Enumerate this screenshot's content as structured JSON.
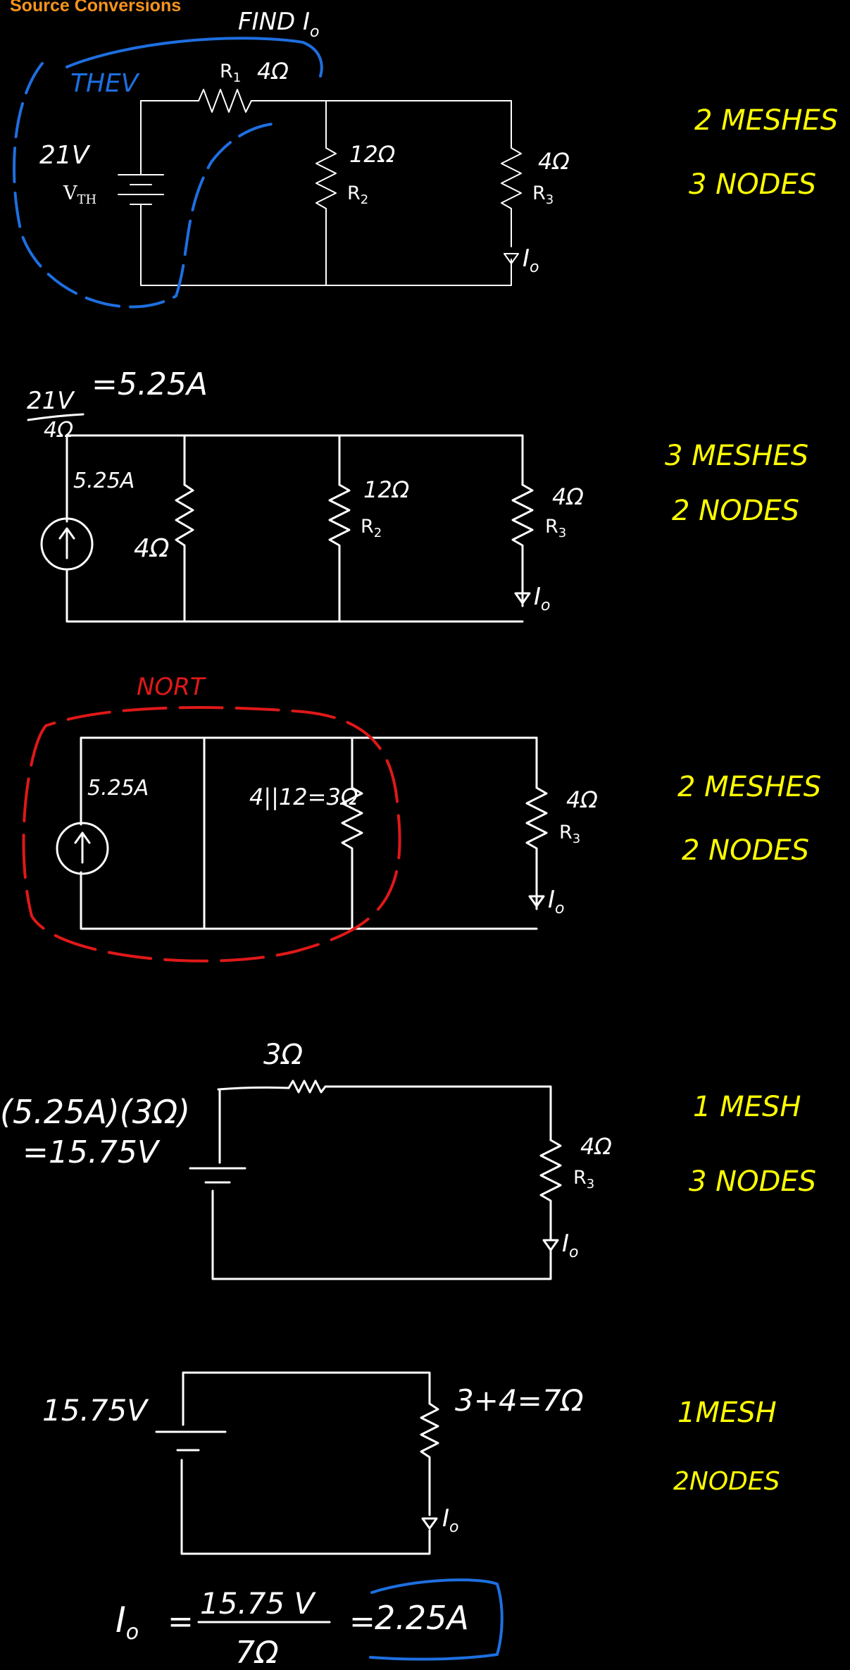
{
  "title": "Source Conversions",
  "colors": {
    "annot": "#ffff00",
    "blue": "#1e6fe0",
    "red": "#e01818",
    "wire": "#ffffff",
    "title": "#f7941d"
  },
  "s1": {
    "find": "FIND I",
    "find_sub": "o",
    "thev": "THEV",
    "vth_value": "21V",
    "vth_label": "V",
    "vth_sub": "TH",
    "r1_label": "R",
    "r1_sub": "1",
    "r1_value": "4Ω",
    "r2_value": "12Ω",
    "r2_label": "R",
    "r2_sub": "2",
    "r3_value": "4Ω",
    "r3_label": "R",
    "r3_sub": "3",
    "io": "I",
    "io_sub": "o",
    "meshes": "2 MESHES",
    "nodes": "3 NODES"
  },
  "s2": {
    "frac_num": "21V",
    "frac_den": "4Ω",
    "frac_result": "=5.25A",
    "src_value": "5.25A",
    "res_value": "4Ω",
    "r2_value": "12Ω",
    "r2_label": "R",
    "r2_sub": "2",
    "r3_value": "4Ω",
    "r3_label": "R",
    "r3_sub": "3",
    "io": "I",
    "io_sub": "o",
    "meshes": "3 MESHES",
    "nodes": "2 NODES"
  },
  "s3": {
    "nort": "NORT",
    "src_value": "5.25A",
    "parallel": "4||12=3Ω",
    "r3_value": "4Ω",
    "r3_label": "R",
    "r3_sub": "3",
    "io": "I",
    "io_sub": "o",
    "meshes": "2 MESHES",
    "nodes": "2 NODES"
  },
  "s4": {
    "eq_line1": "(5.25A)(3Ω)",
    "eq_line2": "=15.75V",
    "r_top": "3Ω",
    "r3_value": "4Ω",
    "r3_label": "R",
    "r3_sub": "3",
    "io": "I",
    "io_sub": "o",
    "meshes": "1 MESH",
    "nodes": "3 NODES"
  },
  "s5": {
    "v_value": "15.75V",
    "r_sum": "3+4=7Ω",
    "io": "I",
    "io_sub": "o",
    "meshes": "1MESH",
    "nodes": "2NODES"
  },
  "final": {
    "lhs": "I",
    "lhs_sub": "o",
    "eq": "=",
    "num": "15.75 V",
    "den": "7Ω",
    "eq2": "=",
    "answer": "2.25A"
  }
}
